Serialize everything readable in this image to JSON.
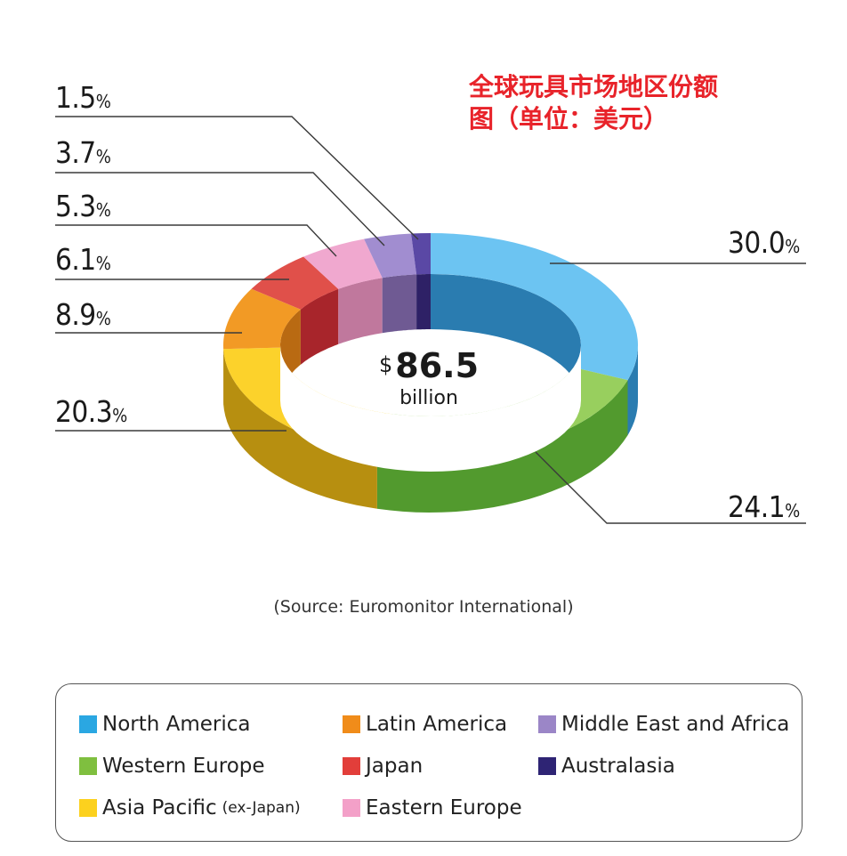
{
  "title": [
    "全球玩具市场地区份额",
    "图（单位：美元）"
  ],
  "center": {
    "currency": "$",
    "value": "86.5",
    "unit": "billion"
  },
  "source": "(Source: Euromonitor International)",
  "chart_data": {
    "type": "pie",
    "subtype": "3d-donut",
    "total": {
      "value": 86.5,
      "unit": "billion",
      "currency": "$"
    },
    "slices": [
      {
        "name": "North America",
        "value": 30.0,
        "label": "30.0",
        "color": "#6cc4f2",
        "side": "#2a7cb0"
      },
      {
        "name": "Western Europe",
        "value": 24.1,
        "label": "24.1",
        "color": "#98cf5e",
        "side": "#529a2e"
      },
      {
        "name": "Asia Pacific",
        "value": 20.3,
        "label": "20.3",
        "color": "#fcd22b",
        "side": "#b78f10"
      },
      {
        "name": "Latin America",
        "value": 8.9,
        "label": "8.9",
        "color": "#f29a25",
        "side": "#b96a12"
      },
      {
        "name": "Japan",
        "value": 6.1,
        "label": "6.1",
        "color": "#e0504a",
        "side": "#a8252b"
      },
      {
        "name": "Eastern Europe",
        "value": 5.3,
        "label": "5.3",
        "color": "#f0a8cf",
        "side": "#c0789d"
      },
      {
        "name": "Middle East and Africa",
        "value": 3.7,
        "label": "3.7",
        "color": "#a18dd0",
        "side": "#6f5a93"
      },
      {
        "name": "Australasia",
        "value": 1.5,
        "label": "1.5",
        "color": "#5a48a5",
        "side": "#2e2166"
      }
    ],
    "percent_unit": "%",
    "legend_position": "bottom"
  },
  "legend": [
    {
      "label": "North America",
      "note": "",
      "color": "#2aa7e2"
    },
    {
      "label": "Latin America",
      "note": "",
      "color": "#f08c1a"
    },
    {
      "label": "Middle East and Africa",
      "note": "",
      "color": "#9b86c7"
    },
    {
      "label": "Western Europe",
      "note": "",
      "color": "#7fbf3f"
    },
    {
      "label": "Japan",
      "note": "",
      "color": "#e23e3a"
    },
    {
      "label": "Australasia",
      "note": "",
      "color": "#2e2474"
    },
    {
      "label": "Asia Pacific",
      "note": "(ex-Japan)",
      "color": "#fcd11e"
    },
    {
      "label": "Eastern Europe",
      "note": "",
      "color": "#f3a0c8"
    }
  ]
}
